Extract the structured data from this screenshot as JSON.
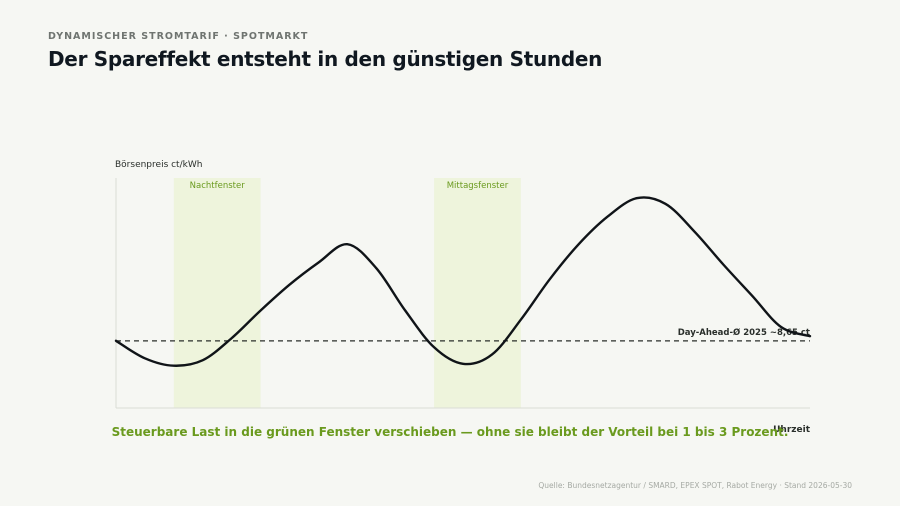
{
  "header": {
    "kicker": "DYNAMISCHER STROMTARIF · SPOTMARKT",
    "title": "Der Spareffekt entsteht in den günstigen Stunden"
  },
  "footer": {
    "source": "Quelle: Bundesnetzagentur / SMARD, EPEX SPOT, Rabot Energy · Stand 2026-05-30"
  },
  "colors": {
    "curve": "#101418",
    "window_fill": "#eef4dc",
    "window_label": "#6a9a1e",
    "callout": "#6a9a1e",
    "axis": "#d9dcd6"
  },
  "chart_data": {
    "type": "line",
    "ylabel": "Börsenpreis ct/kWh",
    "xlabel": "Uhrzeit",
    "x": [
      0,
      1,
      2,
      3,
      4,
      5,
      6,
      7,
      8,
      9,
      10,
      11,
      12,
      13,
      14,
      15,
      16,
      17,
      18,
      19,
      20,
      21,
      22,
      23,
      24
    ],
    "values": [
      8.65,
      7.7,
      7.3,
      7.6,
      8.8,
      10.3,
      11.7,
      12.9,
      13.9,
      12.6,
      10.3,
      8.3,
      7.4,
      7.9,
      9.8,
      12.0,
      13.9,
      15.4,
      16.4,
      16.1,
      14.6,
      12.8,
      11.1,
      9.4,
      8.9
    ],
    "ylim": [
      5,
      17.5
    ],
    "xlim": [
      0,
      24
    ],
    "reference_line": {
      "value": 8.65,
      "label": "Day-Ahead-Ø 2025 ~8,65 ct"
    },
    "windows": [
      {
        "label": "Nachtfenster",
        "start": 2,
        "end": 5
      },
      {
        "label": "Mittagsfenster",
        "start": 11,
        "end": 14
      }
    ],
    "annotation": "Steuerbare Last in die grünen Fenster verschieben — ohne sie bleibt der Vorteil bei 1 bis 3 Prozent.",
    "grid": false
  }
}
